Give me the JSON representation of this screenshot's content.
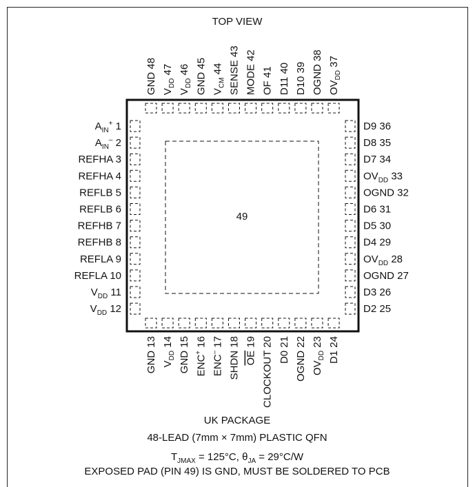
{
  "top_view_label": "TOP VIEW",
  "exposed_pad_number": "49",
  "package_name": "UK PACKAGE",
  "package_desc": "48-LEAD (7mm × 7mm) PLASTIC QFN",
  "thermal": {
    "t_main": "T",
    "t_sub": "JMAX",
    "t_value": " = 125°C, θ",
    "theta_sub": "JA",
    "theta_value": " = 29°C/W"
  },
  "pad_note": "EXPOSED PAD (PIN 49) IS GND, MUST BE SOLDERED TO PCB",
  "pins_left": [
    {
      "n": "1",
      "name": "A",
      "sub": "IN",
      "sup": "+"
    },
    {
      "n": "2",
      "name": "A",
      "sub": "IN",
      "sup": "–"
    },
    {
      "n": "3",
      "name": "REFHA"
    },
    {
      "n": "4",
      "name": "REFHA"
    },
    {
      "n": "5",
      "name": "REFLB"
    },
    {
      "n": "6",
      "name": "REFLB"
    },
    {
      "n": "7",
      "name": "REFHB"
    },
    {
      "n": "8",
      "name": "REFHB"
    },
    {
      "n": "9",
      "name": "REFLA"
    },
    {
      "n": "10",
      "name": "REFLA"
    },
    {
      "n": "11",
      "name": "V",
      "sub": "DD"
    },
    {
      "n": "12",
      "name": "V",
      "sub": "DD"
    }
  ],
  "pins_right": [
    {
      "n": "36",
      "name": "D9"
    },
    {
      "n": "35",
      "name": "D8"
    },
    {
      "n": "34",
      "name": "D7"
    },
    {
      "n": "33",
      "name": "OV",
      "sub": "DD"
    },
    {
      "n": "32",
      "name": "OGND"
    },
    {
      "n": "31",
      "name": "D6"
    },
    {
      "n": "30",
      "name": "D5"
    },
    {
      "n": "29",
      "name": "D4"
    },
    {
      "n": "28",
      "name": "OV",
      "sub": "DD"
    },
    {
      "n": "27",
      "name": "OGND"
    },
    {
      "n": "26",
      "name": "D3"
    },
    {
      "n": "25",
      "name": "D2"
    }
  ],
  "pins_top": [
    {
      "n": "48",
      "name": "GND"
    },
    {
      "n": "47",
      "name": "V",
      "sub": "DD"
    },
    {
      "n": "46",
      "name": "V",
      "sub": "DD"
    },
    {
      "n": "45",
      "name": "GND"
    },
    {
      "n": "44",
      "name": "V",
      "sub": "CM"
    },
    {
      "n": "43",
      "name": "SENSE"
    },
    {
      "n": "42",
      "name": "MODE"
    },
    {
      "n": "41",
      "name": "OF"
    },
    {
      "n": "40",
      "name": "D11"
    },
    {
      "n": "39",
      "name": "D10"
    },
    {
      "n": "38",
      "name": "OGND"
    },
    {
      "n": "37",
      "name": "OV",
      "sub": "DD"
    }
  ],
  "pins_bottom": [
    {
      "n": "13",
      "name": "GND"
    },
    {
      "n": "14",
      "name": "V",
      "sub": "DD"
    },
    {
      "n": "15",
      "name": "GND"
    },
    {
      "n": "16",
      "name": "ENC",
      "sup": "+"
    },
    {
      "n": "17",
      "name": "ENC",
      "sup": "–"
    },
    {
      "n": "18",
      "name": "SHDN"
    },
    {
      "n": "19",
      "name": "OE",
      "overline": true
    },
    {
      "n": "20",
      "name": "CLOCKOUT"
    },
    {
      "n": "21",
      "name": "D0"
    },
    {
      "n": "22",
      "name": "OGND"
    },
    {
      "n": "23",
      "name": "OV",
      "sub": "DD"
    },
    {
      "n": "24",
      "name": "D1"
    }
  ]
}
